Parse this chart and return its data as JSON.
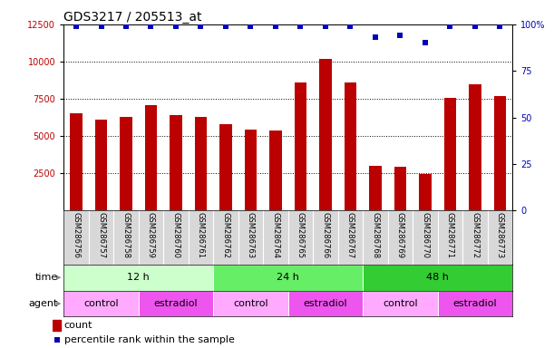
{
  "title": "GDS3217 / 205513_at",
  "samples": [
    "GSM286756",
    "GSM286757",
    "GSM286758",
    "GSM286759",
    "GSM286760",
    "GSM286761",
    "GSM286762",
    "GSM286763",
    "GSM286764",
    "GSM286765",
    "GSM286766",
    "GSM286767",
    "GSM286768",
    "GSM286769",
    "GSM286770",
    "GSM286771",
    "GSM286772",
    "GSM286773"
  ],
  "counts": [
    6500,
    6100,
    6300,
    7100,
    6400,
    6300,
    5800,
    5450,
    5350,
    8600,
    10200,
    8600,
    3000,
    2950,
    2450,
    7550,
    8500,
    7700
  ],
  "percentiles": [
    99,
    99,
    99,
    99,
    99,
    99,
    99,
    99,
    99,
    99,
    99,
    99,
    93,
    94,
    90,
    99,
    99,
    99
  ],
  "ylim_left": [
    0,
    12500
  ],
  "ylim_right": [
    0,
    100
  ],
  "yticks_left": [
    2500,
    5000,
    7500,
    10000,
    12500
  ],
  "yticks_right": [
    0,
    25,
    50,
    75,
    100
  ],
  "bar_color": "#bb0000",
  "dot_color": "#0000bb",
  "grid_color": "#000000",
  "bg_color": "#ffffff",
  "label_bg_color": "#d8d8d8",
  "time_groups": [
    {
      "label": "12 h",
      "start": 0,
      "end": 6,
      "color": "#ccffcc"
    },
    {
      "label": "24 h",
      "start": 6,
      "end": 12,
      "color": "#66ee66"
    },
    {
      "label": "48 h",
      "start": 12,
      "end": 18,
      "color": "#33cc33"
    }
  ],
  "agent_groups": [
    {
      "label": "control",
      "start": 0,
      "end": 3,
      "color": "#ffaaff"
    },
    {
      "label": "estradiol",
      "start": 3,
      "end": 6,
      "color": "#ee55ee"
    },
    {
      "label": "control",
      "start": 6,
      "end": 9,
      "color": "#ffaaff"
    },
    {
      "label": "estradiol",
      "start": 9,
      "end": 12,
      "color": "#ee55ee"
    },
    {
      "label": "control",
      "start": 12,
      "end": 15,
      "color": "#ffaaff"
    },
    {
      "label": "estradiol",
      "start": 15,
      "end": 18,
      "color": "#ee55ee"
    }
  ],
  "legend_count_label": "count",
  "legend_pct_label": "percentile rank within the sample",
  "time_label": "time",
  "agent_label": "agent",
  "title_fontsize": 10,
  "tick_fontsize": 7,
  "bar_width": 0.5,
  "sample_fontsize": 6,
  "row_label_fontsize": 8,
  "row_content_fontsize": 8,
  "legend_fontsize": 8
}
